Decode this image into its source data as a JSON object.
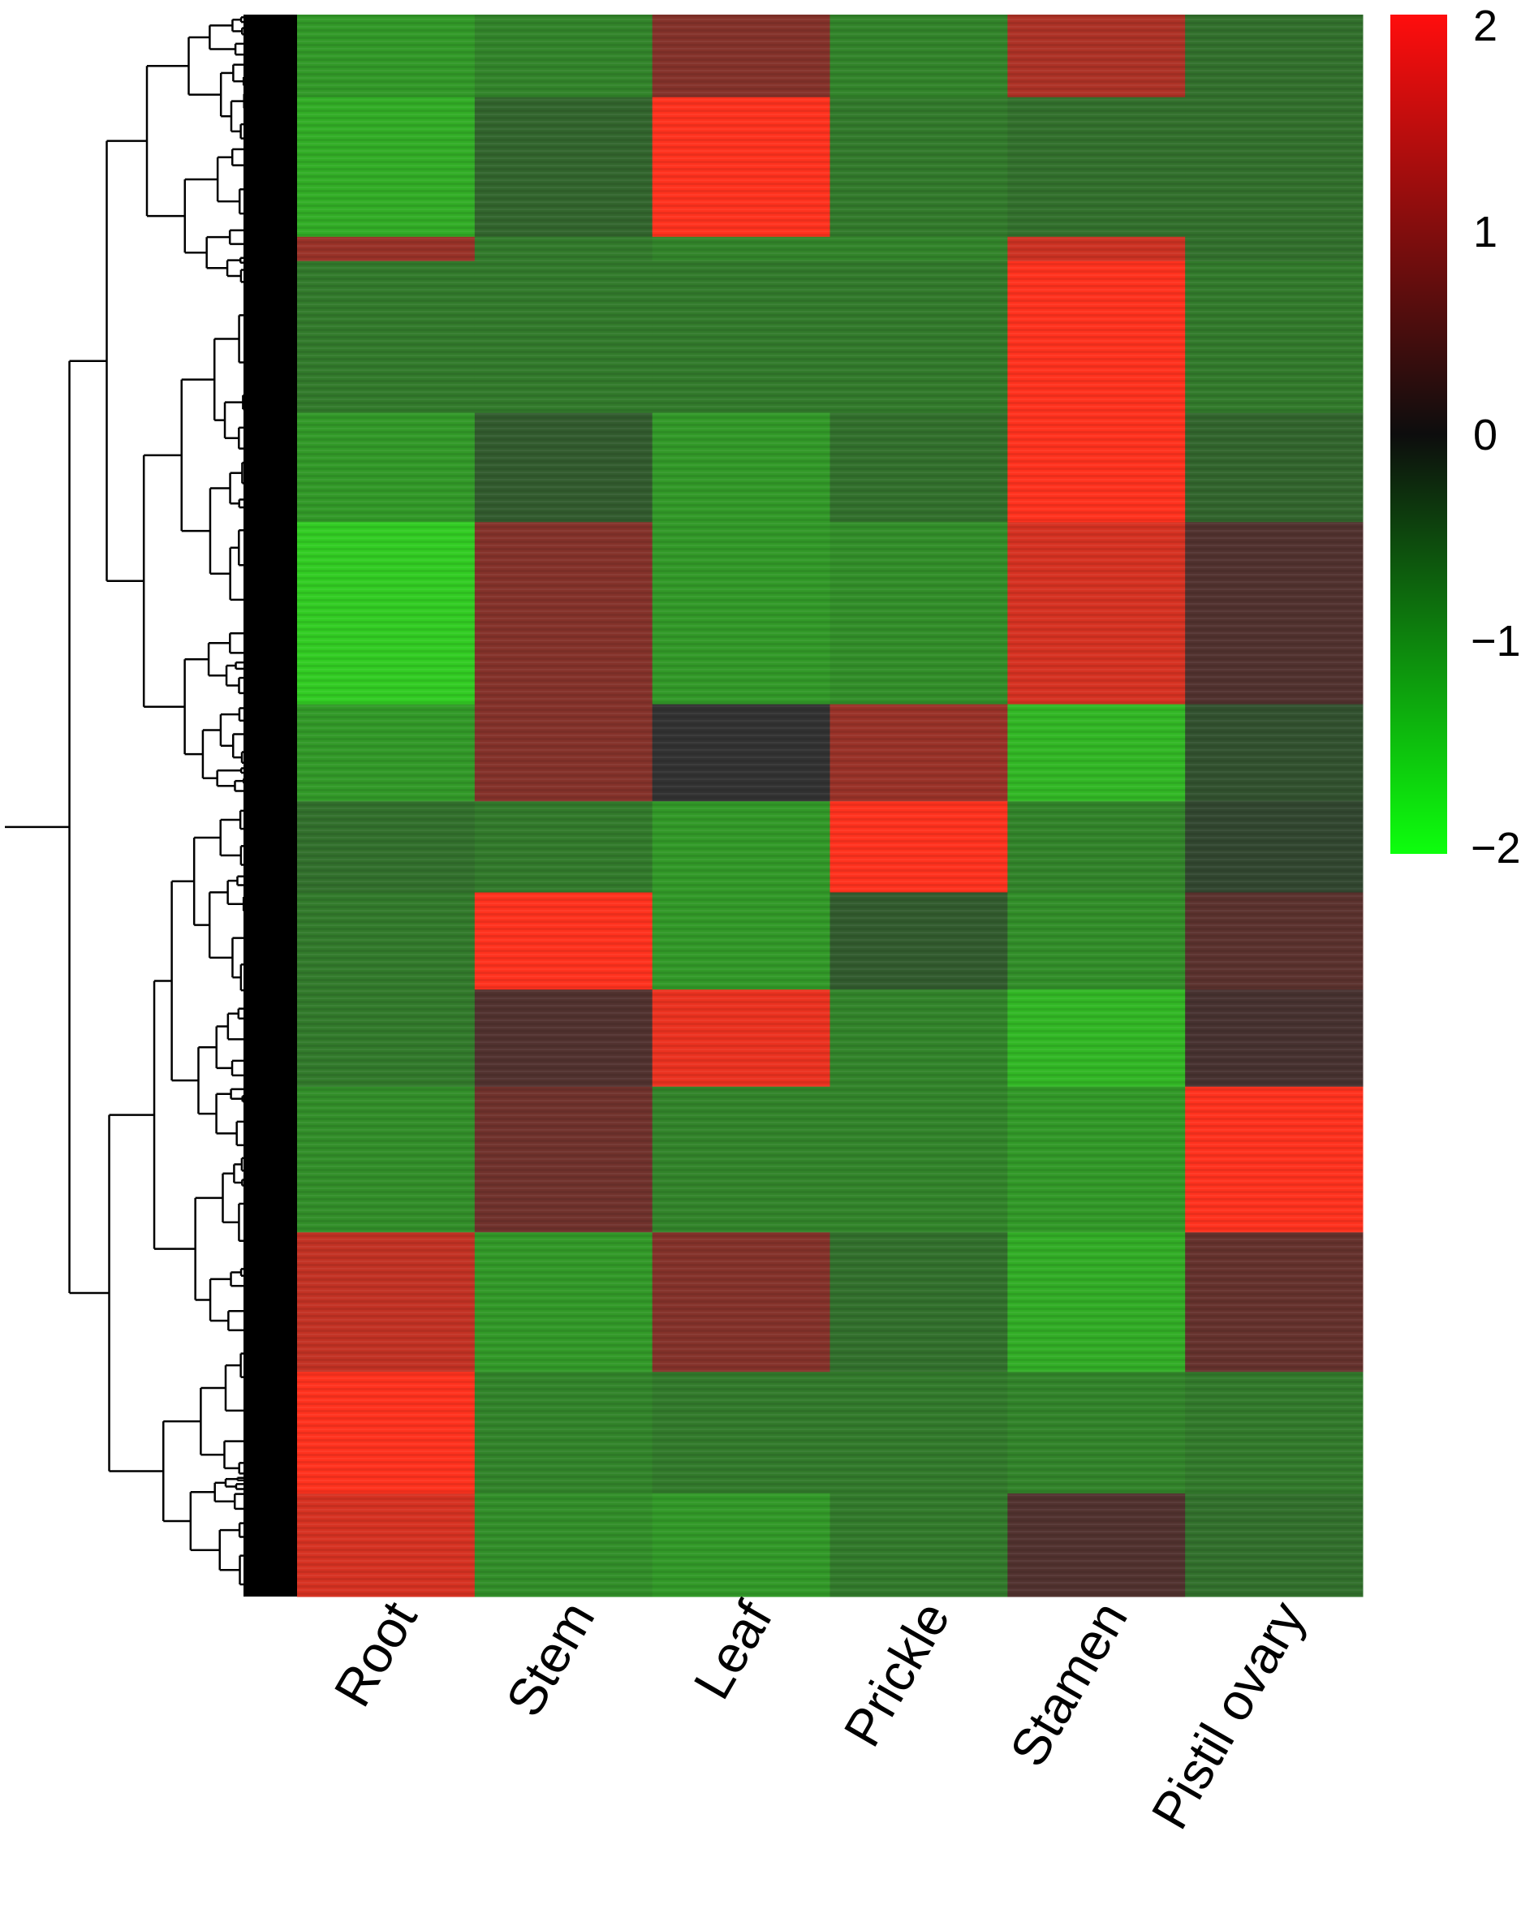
{
  "chart_data": {
    "type": "heatmap",
    "title": "",
    "columns": [
      "Root",
      "Stem",
      "Leaf",
      "Prickle",
      "Stamen",
      "Pistil ovary"
    ],
    "row_dendrogram": true,
    "colorscale": {
      "low": "#00ff00",
      "mid": "#000000",
      "high": "#ff0000",
      "range": [
        -2,
        2
      ],
      "ticks": [
        "2",
        "1",
        "0",
        "−1",
        "−2"
      ],
      "tick_values": [
        2,
        1,
        0,
        -1,
        -2
      ]
    },
    "row_clusters": [
      {
        "rows": 68,
        "values": [
          -1.0,
          -0.8,
          0.8,
          -0.8,
          1.2,
          -0.6
        ]
      },
      {
        "rows": 115,
        "values": [
          -1.2,
          -0.5,
          2.0,
          -0.7,
          -0.6,
          -0.6
        ]
      },
      {
        "rows": 20,
        "values": [
          1.0,
          -0.7,
          -0.8,
          -0.8,
          1.5,
          -0.6
        ]
      },
      {
        "rows": 125,
        "values": [
          -0.7,
          -0.7,
          -0.7,
          -0.7,
          2.0,
          -0.7
        ]
      },
      {
        "rows": 90,
        "values": [
          -1.0,
          -0.4,
          -1.0,
          -0.6,
          2.0,
          -0.5
        ]
      },
      {
        "rows": 150,
        "values": [
          -1.5,
          0.8,
          -1.0,
          -0.9,
          1.6,
          0.3
        ]
      },
      {
        "rows": 80,
        "values": [
          -1.0,
          0.8,
          0.0,
          1.0,
          -1.3,
          -0.3
        ]
      },
      {
        "rows": 75,
        "values": [
          -0.6,
          -0.7,
          -1.0,
          2.0,
          -0.8,
          -0.2
        ]
      },
      {
        "rows": 80,
        "values": [
          -0.7,
          2.0,
          -1.0,
          -0.4,
          -0.9,
          0.4
        ]
      },
      {
        "rows": 80,
        "values": [
          -0.7,
          0.3,
          1.8,
          -0.8,
          -1.3,
          0.2
        ]
      },
      {
        "rows": 120,
        "values": [
          -0.9,
          0.6,
          -0.8,
          -0.8,
          -1.0,
          2.0
        ]
      },
      {
        "rows": 115,
        "values": [
          1.4,
          -1.0,
          0.8,
          -0.6,
          -1.2,
          0.5
        ]
      },
      {
        "rows": 100,
        "values": [
          2.0,
          -0.8,
          -0.7,
          -0.7,
          -0.8,
          -0.7
        ]
      },
      {
        "rows": 85,
        "values": [
          1.6,
          -0.9,
          -1.0,
          -0.7,
          0.3,
          -0.6
        ]
      }
    ]
  }
}
